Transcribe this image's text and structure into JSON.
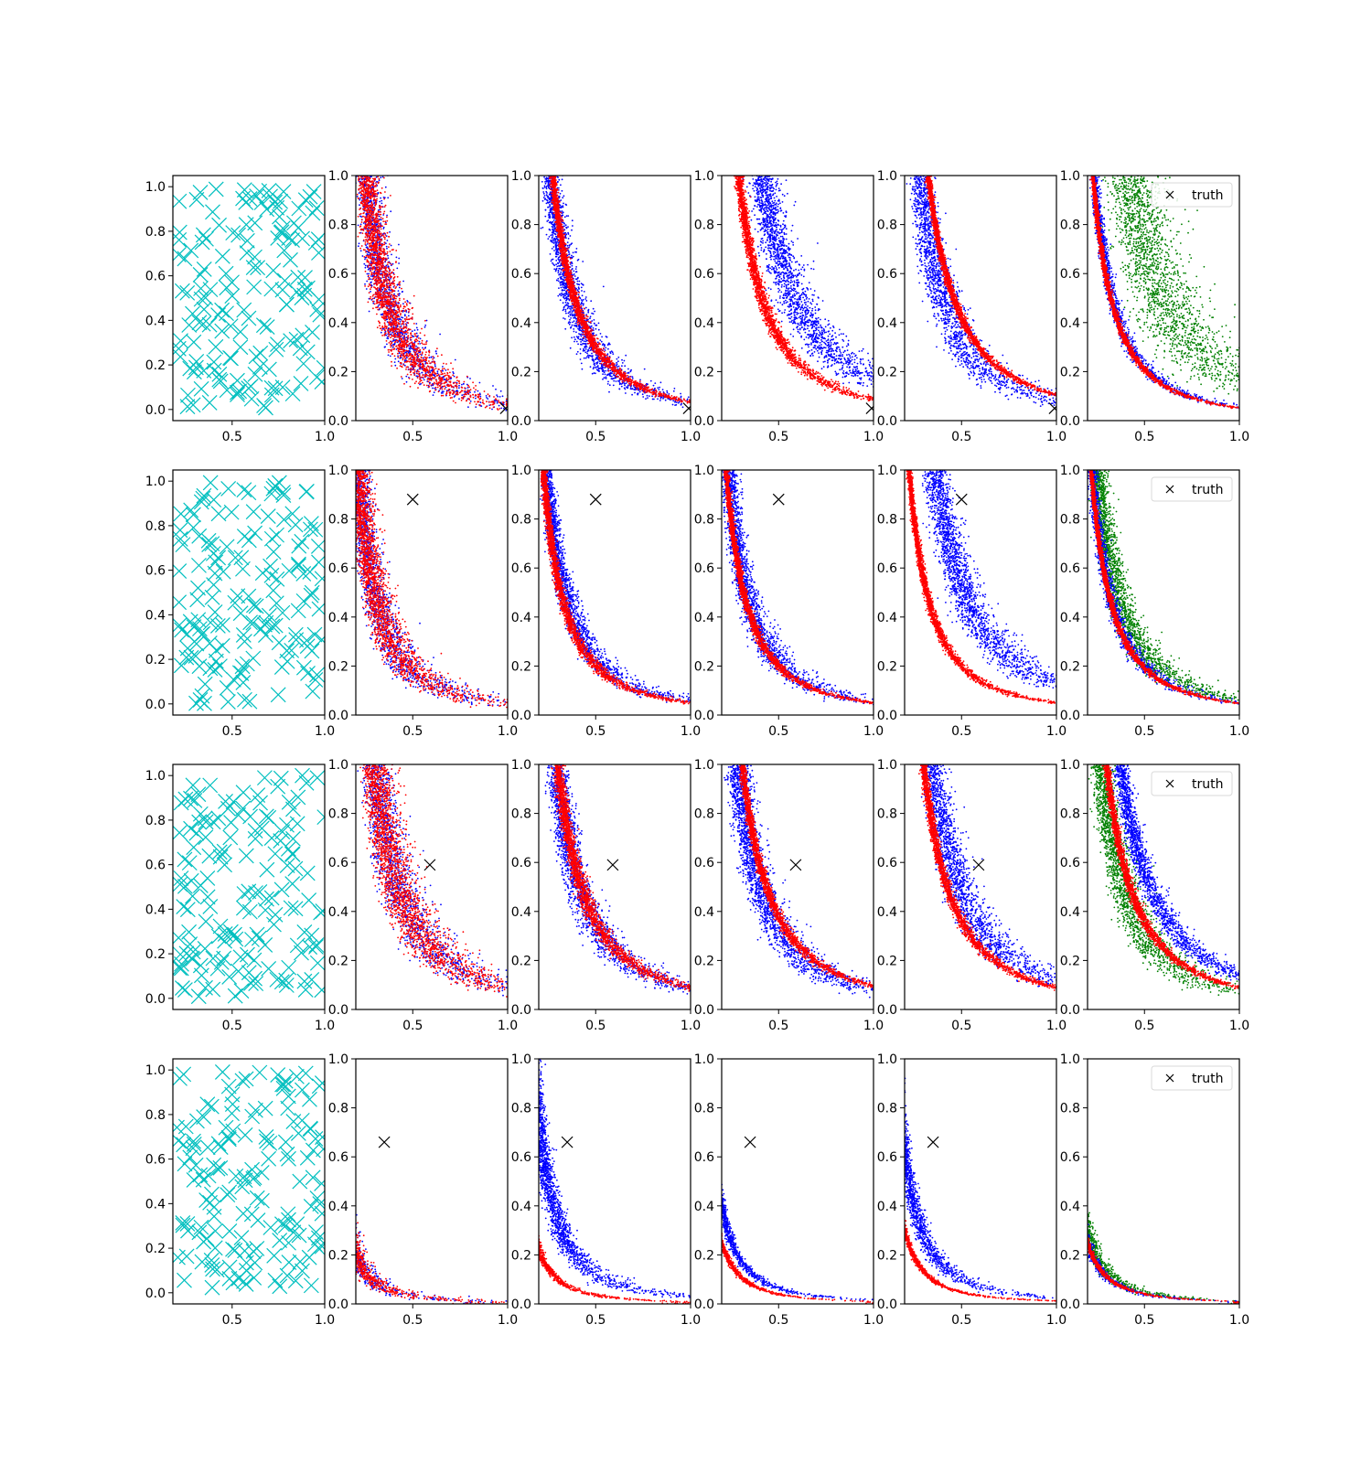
{
  "figure": {
    "rows": 4,
    "cols": 6,
    "colors": {
      "design": "#00bfbf",
      "cloud_a": "#0000ff",
      "cloud_b": "#ff0000",
      "cloud_c": "#008000",
      "truth": "#000000"
    },
    "legend_label": "truth",
    "markers": {
      "design": "x-icon",
      "truth": "x-icon"
    }
  },
  "chart_data": [
    {
      "type": "scatter",
      "row": 1,
      "truth": [
        0.99,
        0.05
      ],
      "panels": [
        {
          "col": 1,
          "kind": "design",
          "xlim": [
            0.18,
            1.0
          ],
          "ylim": [
            -0.05,
            1.05
          ],
          "xticks": [
            "0.5",
            "1.0"
          ],
          "yticks": [
            "0.0",
            "0.2",
            "0.4",
            "0.6",
            "0.8",
            "1.0"
          ],
          "points": 160
        },
        {
          "col": 2,
          "kind": "cloud",
          "xlim": [
            0.2,
            1.0
          ],
          "ylim": [
            0.0,
            1.0
          ],
          "xticks": [
            "0.5",
            "1.0"
          ],
          "yticks": [
            "0.0",
            "0.2",
            "0.4",
            "0.6",
            "0.8",
            "1.0"
          ],
          "series": [
            {
              "color": "blue",
              "k": 0.065,
              "spread": 0.35,
              "n": 1500
            },
            {
              "color": "red",
              "k": 0.065,
              "spread": 0.32,
              "n": 2400
            }
          ]
        },
        {
          "col": 3,
          "kind": "cloud",
          "xlim": [
            0.2,
            1.0
          ],
          "ylim": [
            0.0,
            1.0
          ],
          "xticks": [
            "0.5",
            "1.0"
          ],
          "yticks": [
            "0.0",
            "0.2",
            "0.4",
            "0.6",
            "0.8",
            "1.0"
          ],
          "series": [
            {
              "color": "blue",
              "k": 0.07,
              "spread": 0.25,
              "n": 2000
            },
            {
              "color": "red",
              "k": 0.075,
              "spread": 0.08,
              "n": 2500
            }
          ]
        },
        {
          "col": 4,
          "kind": "cloud",
          "xlim": [
            0.2,
            1.0
          ],
          "ylim": [
            0.0,
            1.0
          ],
          "xticks": [
            "0.5",
            "1.0"
          ],
          "yticks": [
            "0.0",
            "0.2",
            "0.4",
            "0.6",
            "0.8",
            "1.0"
          ],
          "series": [
            {
              "color": "blue",
              "k": 0.17,
              "spread": 0.25,
              "n": 2200
            },
            {
              "color": "red",
              "k": 0.085,
              "spread": 0.1,
              "n": 2500
            }
          ]
        },
        {
          "col": 5,
          "kind": "cloud",
          "xlim": [
            0.2,
            1.0
          ],
          "ylim": [
            0.0,
            1.0
          ],
          "xticks": [
            "0.5",
            "1.0"
          ],
          "yticks": [
            "0.0",
            "0.2",
            "0.4",
            "0.6",
            "0.8",
            "1.0"
          ],
          "series": [
            {
              "color": "blue",
              "k": 0.08,
              "spread": 0.3,
              "n": 1800
            },
            {
              "color": "red",
              "k": 0.105,
              "spread": 0.06,
              "n": 2500
            }
          ]
        },
        {
          "col": 6,
          "kind": "cloud",
          "legend": true,
          "xlim": [
            0.2,
            1.0
          ],
          "ylim": [
            0.0,
            1.0
          ],
          "xticks": [
            "0.5",
            "1.0"
          ],
          "yticks": [
            "0.0",
            "0.2",
            "0.4",
            "0.6",
            "0.8",
            "1.0"
          ],
          "series": [
            {
              "color": "green",
              "k": 0.18,
              "spread": 0.45,
              "n": 2200
            },
            {
              "color": "blue",
              "k": 0.055,
              "spread": 0.12,
              "n": 1500
            },
            {
              "color": "red",
              "k": 0.052,
              "spread": 0.06,
              "n": 2500
            }
          ]
        }
      ]
    },
    {
      "type": "scatter",
      "row": 2,
      "truth": [
        0.5,
        0.88
      ],
      "panels": [
        {
          "col": 1,
          "kind": "design",
          "xlim": [
            0.18,
            1.0
          ],
          "ylim": [
            -0.05,
            1.05
          ],
          "xticks": [
            "0.5",
            "1.0"
          ],
          "yticks": [
            "0.0",
            "0.2",
            "0.4",
            "0.6",
            "0.8",
            "1.0"
          ],
          "points": 160
        },
        {
          "col": 2,
          "kind": "cloud",
          "xlim": [
            0.2,
            1.0
          ],
          "ylim": [
            0.0,
            1.0
          ],
          "xticks": [
            "0.5",
            "1.0"
          ],
          "yticks": [
            "0.0",
            "0.2",
            "0.4",
            "0.6",
            "0.8",
            "1.0"
          ],
          "series": [
            {
              "color": "blue",
              "k": 0.045,
              "spread": 0.35,
              "n": 1500
            },
            {
              "color": "red",
              "k": 0.045,
              "spread": 0.35,
              "n": 2400
            }
          ]
        },
        {
          "col": 3,
          "kind": "cloud",
          "xlim": [
            0.2,
            1.0
          ],
          "ylim": [
            0.0,
            1.0
          ],
          "xticks": [
            "0.5",
            "1.0"
          ],
          "yticks": [
            "0.0",
            "0.2",
            "0.4",
            "0.6",
            "0.8",
            "1.0"
          ],
          "series": [
            {
              "color": "blue",
              "k": 0.058,
              "spread": 0.2,
              "n": 2000
            },
            {
              "color": "red",
              "k": 0.05,
              "spread": 0.1,
              "n": 2500
            }
          ]
        },
        {
          "col": 4,
          "kind": "cloud",
          "xlim": [
            0.2,
            1.0
          ],
          "ylim": [
            0.0,
            1.0
          ],
          "xticks": [
            "0.5",
            "1.0"
          ],
          "yticks": [
            "0.0",
            "0.2",
            "0.4",
            "0.6",
            "0.8",
            "1.0"
          ],
          "series": [
            {
              "color": "blue",
              "k": 0.055,
              "spread": 0.25,
              "n": 2000
            },
            {
              "color": "red",
              "k": 0.05,
              "spread": 0.08,
              "n": 2500
            }
          ]
        },
        {
          "col": 5,
          "kind": "cloud",
          "xlim": [
            0.2,
            1.0
          ],
          "ylim": [
            0.0,
            1.0
          ],
          "xticks": [
            "0.5",
            "1.0"
          ],
          "yticks": [
            "0.0",
            "0.2",
            "0.4",
            "0.6",
            "0.8",
            "1.0"
          ],
          "series": [
            {
              "color": "blue",
              "k": 0.13,
              "spread": 0.25,
              "n": 2200
            },
            {
              "color": "red",
              "k": 0.05,
              "spread": 0.08,
              "n": 2500
            }
          ]
        },
        {
          "col": 6,
          "kind": "cloud",
          "legend": true,
          "xlim": [
            0.2,
            1.0
          ],
          "ylim": [
            0.0,
            1.0
          ],
          "xticks": [
            "0.5",
            "1.0"
          ],
          "yticks": [
            "0.0",
            "0.2",
            "0.4",
            "0.6",
            "0.8",
            "1.0"
          ],
          "series": [
            {
              "color": "green",
              "k": 0.065,
              "spread": 0.25,
              "n": 2000
            },
            {
              "color": "blue",
              "k": 0.05,
              "spread": 0.15,
              "n": 1500
            },
            {
              "color": "red",
              "k": 0.048,
              "spread": 0.06,
              "n": 2500
            }
          ]
        }
      ]
    },
    {
      "type": "scatter",
      "row": 3,
      "truth": [
        0.59,
        0.59
      ],
      "panels": [
        {
          "col": 1,
          "kind": "design",
          "xlim": [
            0.18,
            1.0
          ],
          "ylim": [
            -0.05,
            1.05
          ],
          "xticks": [
            "0.5",
            "1.0"
          ],
          "yticks": [
            "0.0",
            "0.2",
            "0.4",
            "0.6",
            "0.8",
            "1.0"
          ],
          "points": 160
        },
        {
          "col": 2,
          "kind": "cloud",
          "xlim": [
            0.2,
            1.0
          ],
          "ylim": [
            0.0,
            1.0
          ],
          "xticks": [
            "0.5",
            "1.0"
          ],
          "yticks": [
            "0.0",
            "0.2",
            "0.4",
            "0.6",
            "0.8",
            "1.0"
          ],
          "series": [
            {
              "color": "blue",
              "k": 0.09,
              "spread": 0.35,
              "n": 1500
            },
            {
              "color": "red",
              "k": 0.09,
              "spread": 0.35,
              "n": 2400
            }
          ]
        },
        {
          "col": 3,
          "kind": "cloud",
          "xlim": [
            0.2,
            1.0
          ],
          "ylim": [
            0.0,
            1.0
          ],
          "xticks": [
            "0.5",
            "1.0"
          ],
          "yticks": [
            "0.0",
            "0.2",
            "0.4",
            "0.6",
            "0.8",
            "1.0"
          ],
          "series": [
            {
              "color": "blue",
              "k": 0.085,
              "spread": 0.25,
              "n": 2000
            },
            {
              "color": "red",
              "k": 0.09,
              "spread": 0.12,
              "n": 2500
            }
          ]
        },
        {
          "col": 4,
          "kind": "cloud",
          "xlim": [
            0.2,
            1.0
          ],
          "ylim": [
            0.0,
            1.0
          ],
          "xticks": [
            "0.5",
            "1.0"
          ],
          "yticks": [
            "0.0",
            "0.2",
            "0.4",
            "0.6",
            "0.8",
            "1.0"
          ],
          "series": [
            {
              "color": "blue",
              "k": 0.08,
              "spread": 0.28,
              "n": 2200
            },
            {
              "color": "red",
              "k": 0.095,
              "spread": 0.07,
              "n": 2500
            }
          ]
        },
        {
          "col": 5,
          "kind": "cloud",
          "xlim": [
            0.2,
            1.0
          ],
          "ylim": [
            0.0,
            1.0
          ],
          "xticks": [
            "0.5",
            "1.0"
          ],
          "yticks": [
            "0.0",
            "0.2",
            "0.4",
            "0.6",
            "0.8",
            "1.0"
          ],
          "series": [
            {
              "color": "blue",
              "k": 0.12,
              "spread": 0.25,
              "n": 2000
            },
            {
              "color": "red",
              "k": 0.09,
              "spread": 0.08,
              "n": 2500
            }
          ]
        },
        {
          "col": 6,
          "kind": "cloud",
          "legend": true,
          "xlim": [
            0.2,
            1.0
          ],
          "ylim": [
            0.0,
            1.0
          ],
          "xticks": [
            "0.5",
            "1.0"
          ],
          "yticks": [
            "0.0",
            "0.2",
            "0.4",
            "0.6",
            "0.8",
            "1.0"
          ],
          "series": [
            {
              "color": "green",
              "k": 0.075,
              "spread": 0.3,
              "n": 2000
            },
            {
              "color": "blue",
              "k": 0.14,
              "spread": 0.15,
              "n": 2000
            },
            {
              "color": "red",
              "k": 0.09,
              "spread": 0.07,
              "n": 2500
            }
          ]
        }
      ]
    },
    {
      "type": "scatter",
      "row": 4,
      "truth": [
        0.35,
        0.66
      ],
      "panels": [
        {
          "col": 1,
          "kind": "design",
          "xlim": [
            0.18,
            1.0
          ],
          "ylim": [
            -0.05,
            1.05
          ],
          "xticks": [
            "0.5",
            "1.0"
          ],
          "yticks": [
            "0.0",
            "0.2",
            "0.4",
            "0.6",
            "0.8",
            "1.0"
          ],
          "points": 160
        },
        {
          "col": 2,
          "kind": "cloud",
          "xlim": [
            0.2,
            1.0
          ],
          "ylim": [
            0.0,
            1.0
          ],
          "xticks": [
            "0.5",
            "1.0"
          ],
          "yticks": [
            "0.0",
            "0.2",
            "0.4",
            "0.6",
            "0.8",
            "1.0"
          ],
          "series": [
            {
              "color": "blue",
              "k": 0.008,
              "spread": 0.35,
              "n": 1500
            },
            {
              "color": "red",
              "k": 0.008,
              "spread": 0.3,
              "n": 2400
            }
          ]
        },
        {
          "col": 3,
          "kind": "cloud",
          "xlim": [
            0.2,
            1.0
          ],
          "ylim": [
            0.0,
            1.0
          ],
          "xticks": [
            "0.5",
            "1.0"
          ],
          "yticks": [
            "0.0",
            "0.2",
            "0.4",
            "0.6",
            "0.8",
            "1.0"
          ],
          "series": [
            {
              "color": "blue",
              "k": 0.03,
              "spread": 0.25,
              "n": 2200
            },
            {
              "color": "red",
              "k": 0.009,
              "spread": 0.12,
              "n": 2500
            }
          ]
        },
        {
          "col": 4,
          "kind": "cloud",
          "xlim": [
            0.2,
            1.0
          ],
          "ylim": [
            0.0,
            1.0
          ],
          "xticks": [
            "0.5",
            "1.0"
          ],
          "yticks": [
            "0.0",
            "0.2",
            "0.4",
            "0.6",
            "0.8",
            "1.0"
          ],
          "series": [
            {
              "color": "blue",
              "k": 0.016,
              "spread": 0.12,
              "n": 1800
            },
            {
              "color": "red",
              "k": 0.01,
              "spread": 0.08,
              "n": 2500
            }
          ]
        },
        {
          "col": 5,
          "kind": "cloud",
          "xlim": [
            0.2,
            1.0
          ],
          "ylim": [
            0.0,
            1.0
          ],
          "xticks": [
            "0.5",
            "1.0"
          ],
          "yticks": [
            "0.0",
            "0.2",
            "0.4",
            "0.6",
            "0.8",
            "1.0"
          ],
          "series": [
            {
              "color": "blue",
              "k": 0.025,
              "spread": 0.2,
              "n": 1800
            },
            {
              "color": "red",
              "k": 0.012,
              "spread": 0.08,
              "n": 2500
            }
          ]
        },
        {
          "col": 6,
          "kind": "cloud",
          "legend": true,
          "xlim": [
            0.2,
            1.0
          ],
          "ylim": [
            0.0,
            1.0
          ],
          "xticks": [
            "0.5",
            "1.0"
          ],
          "yticks": [
            "0.0",
            "0.2",
            "0.4",
            "0.6",
            "0.8",
            "1.0"
          ],
          "series": [
            {
              "color": "green",
              "k": 0.012,
              "spread": 0.22,
              "n": 1800
            },
            {
              "color": "blue",
              "k": 0.01,
              "spread": 0.15,
              "n": 1500
            },
            {
              "color": "red",
              "k": 0.01,
              "spread": 0.07,
              "n": 2500
            }
          ]
        }
      ]
    }
  ]
}
